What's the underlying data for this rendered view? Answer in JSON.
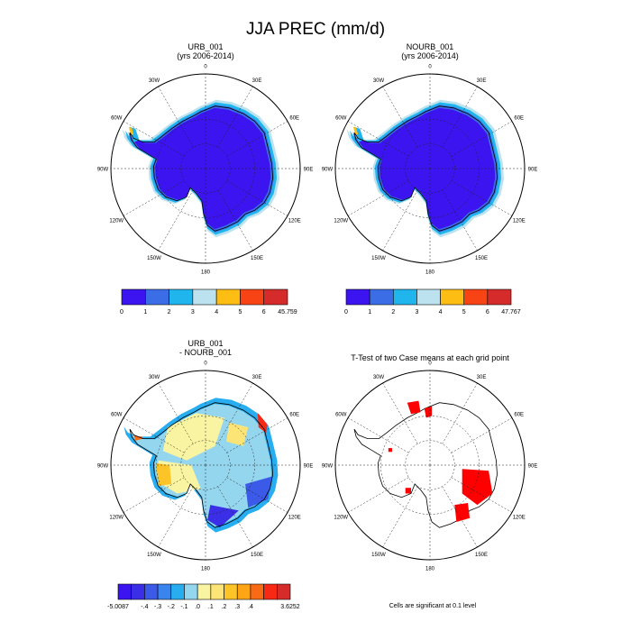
{
  "title": "JJA PREC (mm/d)",
  "chart_data": [
    {
      "type": "heatmap",
      "title": "URB_001",
      "subtitle": "(yrs 2006-2014)",
      "projection": "south-polar-stereographic",
      "lon_labels": [
        "0",
        "30E",
        "60E",
        "90E",
        "120E",
        "150E",
        "180",
        "150W",
        "120W",
        "90W",
        "60W",
        "30W"
      ],
      "colorbar": {
        "colors": [
          "#3b14f0",
          "#3b6ee6",
          "#21b5ee",
          "#bde2ef",
          "#fdbd13",
          "#f84414",
          "#d52b2b"
        ],
        "tick_labels": [
          "0",
          "1",
          "2",
          "3",
          "4",
          "5",
          "6",
          "45.759"
        ]
      }
    },
    {
      "type": "heatmap",
      "title": "NOURB_001",
      "subtitle": "(yrs 2006-2014)",
      "projection": "south-polar-stereographic",
      "lon_labels": [
        "0",
        "30E",
        "60E",
        "90E",
        "120E",
        "150E",
        "180",
        "150W",
        "120W",
        "90W",
        "60W",
        "30W"
      ],
      "colorbar": {
        "colors": [
          "#3b14f0",
          "#3b6ee6",
          "#21b5ee",
          "#bde2ef",
          "#fdbd13",
          "#f84414",
          "#d52b2b"
        ],
        "tick_labels": [
          "0",
          "1",
          "2",
          "3",
          "4",
          "5",
          "6",
          "47.767"
        ]
      }
    },
    {
      "type": "heatmap",
      "title": "URB_001",
      "subtitle": "- NOURB_001",
      "projection": "south-polar-stereographic",
      "lon_labels": [
        "0",
        "30E",
        "60E",
        "90E",
        "120E",
        "150E",
        "180",
        "150W",
        "120W",
        "90W",
        "60W",
        "30W"
      ],
      "colorbar": {
        "colors": [
          "#3b14f0",
          "#3a2ee6",
          "#3b5ae8",
          "#3b84ee",
          "#28aef0",
          "#95d6ef",
          "#f8f4a2",
          "#fde476",
          "#fdc427",
          "#fda514",
          "#f86b14",
          "#f82914",
          "#d52b2b"
        ],
        "tick_labels": [
          "-5.0087",
          "-.4",
          "-.3",
          "-.2",
          "-.1",
          ".0",
          ".1",
          ".2",
          ".3",
          ".4",
          "3.6252"
        ]
      }
    },
    {
      "type": "heatmap",
      "title": "T-Test of two Case means at each grid point",
      "projection": "south-polar-stereographic",
      "lon_labels": [
        "0",
        "30E",
        "60E",
        "90E",
        "120E",
        "150E",
        "180",
        "150W",
        "120W",
        "90W",
        "60W",
        "30W"
      ],
      "significant_color": "#ff0000",
      "footnote": "Cells are significant at 0.1 level"
    }
  ]
}
